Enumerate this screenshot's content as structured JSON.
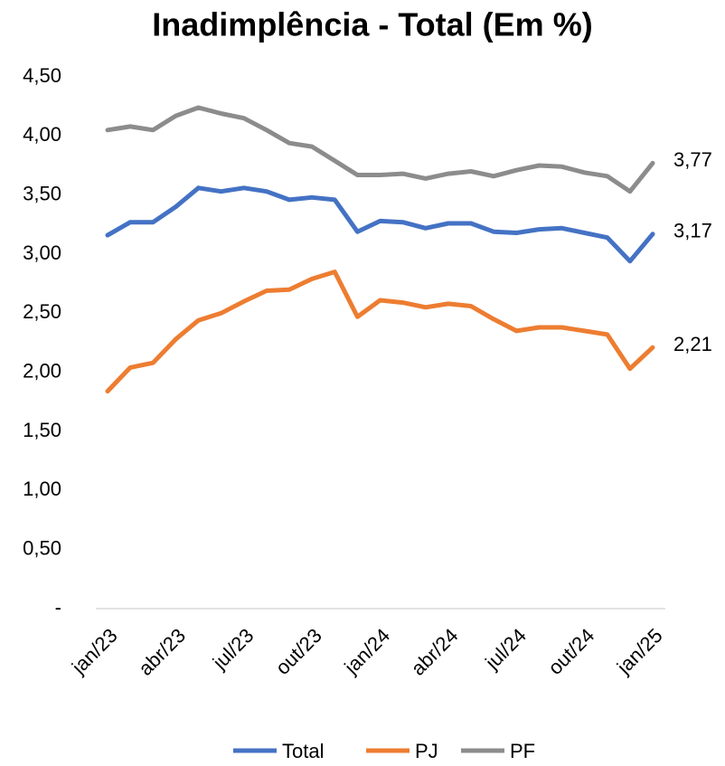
{
  "chart_data": {
    "type": "line",
    "title": "Inadimplência - Total (Em %)",
    "categories": [
      "jan/23",
      null,
      null,
      "abr/23",
      null,
      null,
      "jul/23",
      null,
      null,
      "out/23",
      null,
      null,
      "jan/24",
      null,
      null,
      "abr/24",
      null,
      null,
      "jul/24",
      null,
      null,
      "out/24",
      null,
      null,
      "jan/25"
    ],
    "series": [
      {
        "name": "Total",
        "color": "#4472c4",
        "values": [
          3.16,
          3.27,
          3.27,
          3.4,
          3.56,
          3.53,
          3.56,
          3.53,
          3.46,
          3.48,
          3.46,
          3.19,
          3.28,
          3.27,
          3.22,
          3.26,
          3.26,
          3.19,
          3.18,
          3.21,
          3.22,
          3.18,
          3.14,
          2.94,
          3.17
        ],
        "value_labels": [
          null,
          null,
          null,
          null,
          null,
          null,
          null,
          null,
          null,
          null,
          null,
          null,
          null,
          null,
          null,
          null,
          null,
          null,
          null,
          null,
          null,
          null,
          null,
          null,
          "3,17"
        ]
      },
      {
        "name": "PJ",
        "color": "#ed7d31",
        "values": [
          1.84,
          2.04,
          2.08,
          2.28,
          2.44,
          2.5,
          2.6,
          2.69,
          2.7,
          2.79,
          2.85,
          2.47,
          2.61,
          2.59,
          2.55,
          2.58,
          2.56,
          2.45,
          2.35,
          2.38,
          2.38,
          2.35,
          2.32,
          2.03,
          2.21
        ],
        "value_labels": [
          null,
          null,
          null,
          null,
          null,
          null,
          null,
          null,
          null,
          null,
          null,
          null,
          null,
          null,
          null,
          null,
          null,
          null,
          null,
          null,
          null,
          null,
          null,
          null,
          "2,21"
        ]
      },
      {
        "name": "PF",
        "color": "#8c8c8c",
        "values": [
          4.05,
          4.08,
          4.05,
          4.17,
          4.24,
          4.19,
          4.15,
          4.05,
          3.94,
          3.91,
          3.79,
          3.67,
          3.67,
          3.68,
          3.64,
          3.68,
          3.7,
          3.66,
          3.71,
          3.75,
          3.74,
          3.69,
          3.66,
          3.53,
          3.77
        ],
        "value_labels": [
          null,
          null,
          null,
          null,
          null,
          null,
          null,
          null,
          null,
          null,
          null,
          null,
          null,
          null,
          null,
          null,
          null,
          null,
          null,
          null,
          null,
          null,
          null,
          null,
          "3,77"
        ]
      }
    ],
    "ylim": [
      0,
      4.5
    ],
    "yticks": [
      {
        "value": 0,
        "label": "-"
      },
      {
        "value": 0.5,
        "label": "0,50"
      },
      {
        "value": 1,
        "label": "1,00"
      },
      {
        "value": 1.5,
        "label": "1,50"
      },
      {
        "value": 2,
        "label": "2,00"
      },
      {
        "value": 2.5,
        "label": "2,50"
      },
      {
        "value": 3,
        "label": "3,00"
      },
      {
        "value": 3.5,
        "label": "3,50"
      },
      {
        "value": 4,
        "label": "4,00"
      },
      {
        "value": 4.5,
        "label": "4,50"
      }
    ],
    "legend": "bottom"
  }
}
